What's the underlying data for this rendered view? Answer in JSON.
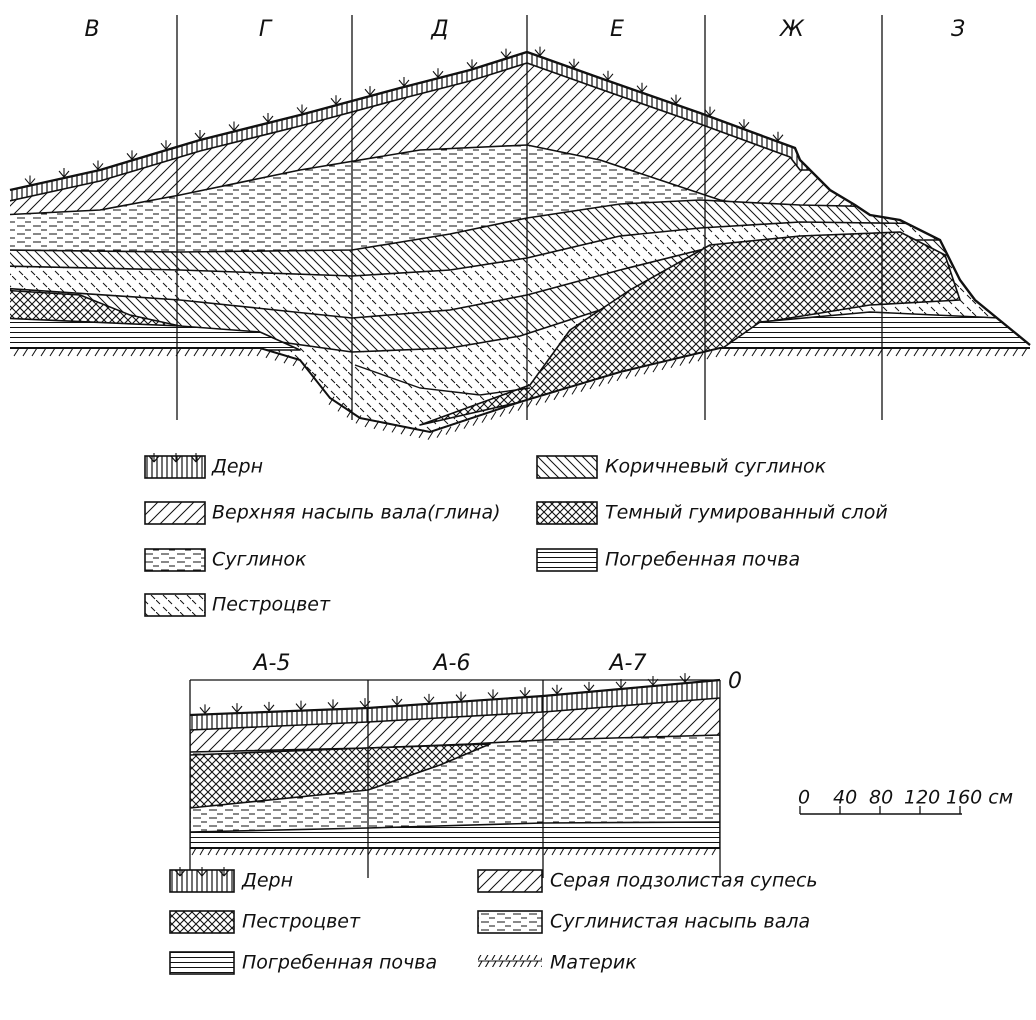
{
  "section1": {
    "columns": [
      "В",
      "Г",
      "Д",
      "Е",
      "Ж",
      "З"
    ]
  },
  "legend1": [
    "Дерн",
    "Верхняя насыпь вала(глина)",
    "Суглинок",
    "Пестроцвет",
    "Коричневый суглинок",
    "Темный гумированный слой",
    "Погребенная почва"
  ],
  "section2": {
    "columns": [
      "А-5",
      "А-6",
      "А-7"
    ],
    "origin": "0"
  },
  "scale": [
    "0",
    "40",
    "80",
    "120",
    "160 см"
  ],
  "legend2": [
    "Дерн",
    "Пестроцвет",
    "Погребенная почва",
    "Серая подзолистая супесь",
    "Суглинистая насыпь вала",
    "Материк"
  ]
}
